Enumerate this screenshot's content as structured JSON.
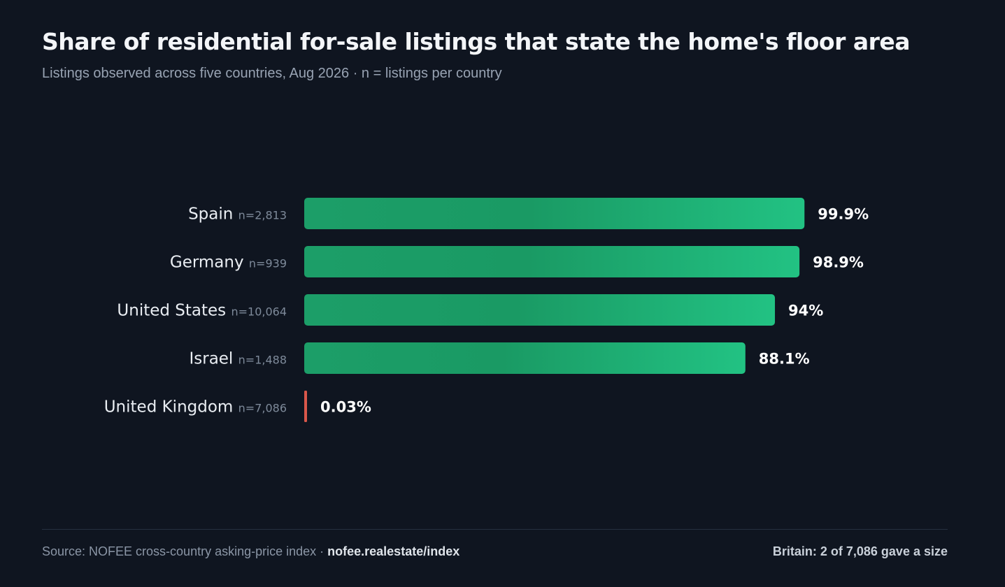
{
  "chart_data": {
    "type": "bar",
    "orientation": "horizontal",
    "title": "Share of residential for-sale listings that state the home's floor area",
    "subtitle": "Listings observed across five countries, Aug 2026 · n = listings per country",
    "categories": [
      "Spain",
      "Germany",
      "United States",
      "Israel",
      "United Kingdom"
    ],
    "n_labels": [
      "n=2,813",
      "n=939",
      "n=10,064",
      "n=1,488",
      "n=7,086"
    ],
    "values": [
      99.9,
      98.9,
      94,
      88.1,
      0.03
    ],
    "value_labels": [
      "99.9%",
      "98.9%",
      "94%",
      "88.1%",
      "0.03%"
    ],
    "unit": "%",
    "xlim": [
      0,
      100
    ],
    "grid": false,
    "legend": "none",
    "colors": {
      "bar_high": "#1fb777",
      "bar_low": "#d9574a"
    }
  },
  "footer": {
    "source_prefix": "Source: NOFEE cross-country asking-price index · ",
    "source_link": "nofee.realestate/index",
    "note": "Britain: 2 of 7,086 gave a size"
  }
}
